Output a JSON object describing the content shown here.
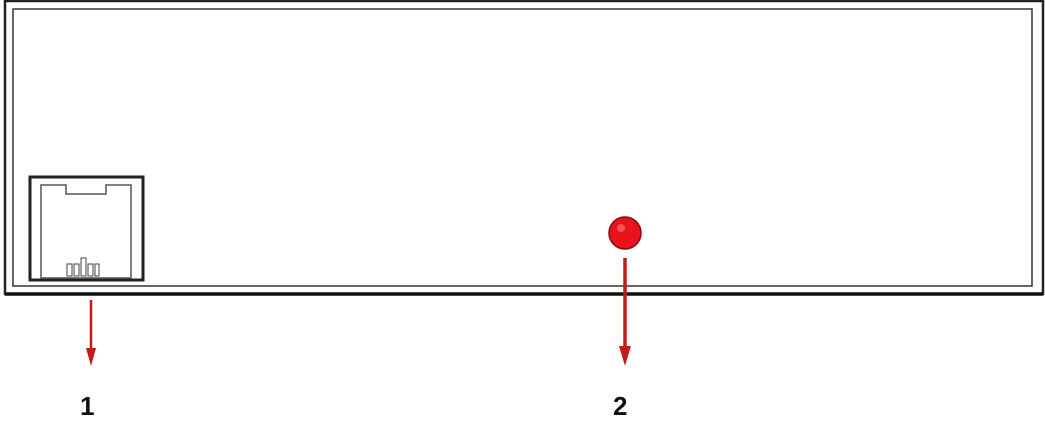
{
  "diagram": {
    "colors": {
      "panel_outline": "#222222",
      "panel_fill": "#ffffff",
      "led": "#e8141b",
      "arrow": "#c51a1a",
      "label_text": "#111111"
    },
    "components": [
      {
        "id": "rj-port",
        "icon": "ethernet-port-icon"
      },
      {
        "id": "status-led",
        "icon": "led-indicator-icon"
      }
    ],
    "callouts": [
      {
        "label": "1",
        "target": "rj-port"
      },
      {
        "label": "2",
        "target": "status-led"
      }
    ]
  }
}
